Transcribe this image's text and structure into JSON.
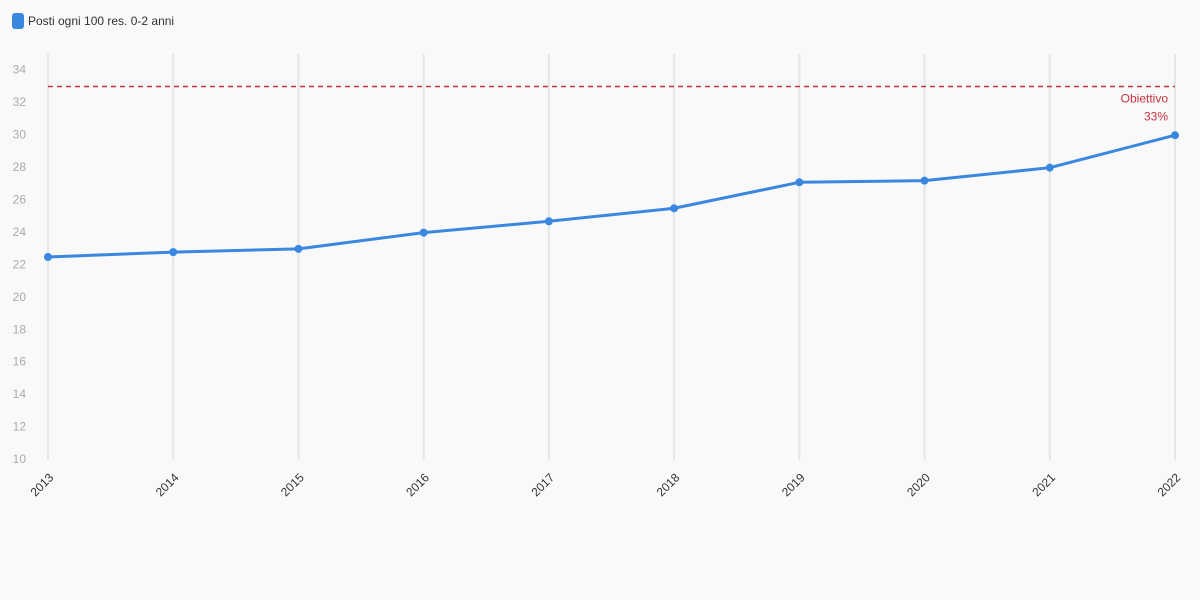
{
  "chart_data": {
    "type": "line",
    "categories": [
      "2013",
      "2014",
      "2015",
      "2016",
      "2017",
      "2018",
      "2019",
      "2020",
      "2021",
      "2022"
    ],
    "series": [
      {
        "name": "Posti ogni 100 res. 0-2 anni",
        "color": "#3a87e0",
        "values": [
          22.5,
          22.8,
          23.0,
          24.0,
          24.7,
          25.5,
          27.1,
          27.2,
          28.0,
          30.0
        ]
      }
    ],
    "ylim": [
      10,
      35
    ],
    "yticks": [
      10,
      12,
      14,
      16,
      18,
      20,
      22,
      24,
      26,
      28,
      30,
      32,
      34
    ],
    "grid": true,
    "target": {
      "value": 33,
      "label": "Obiettivo",
      "value_label": "33%",
      "color": "#c8323c"
    }
  }
}
